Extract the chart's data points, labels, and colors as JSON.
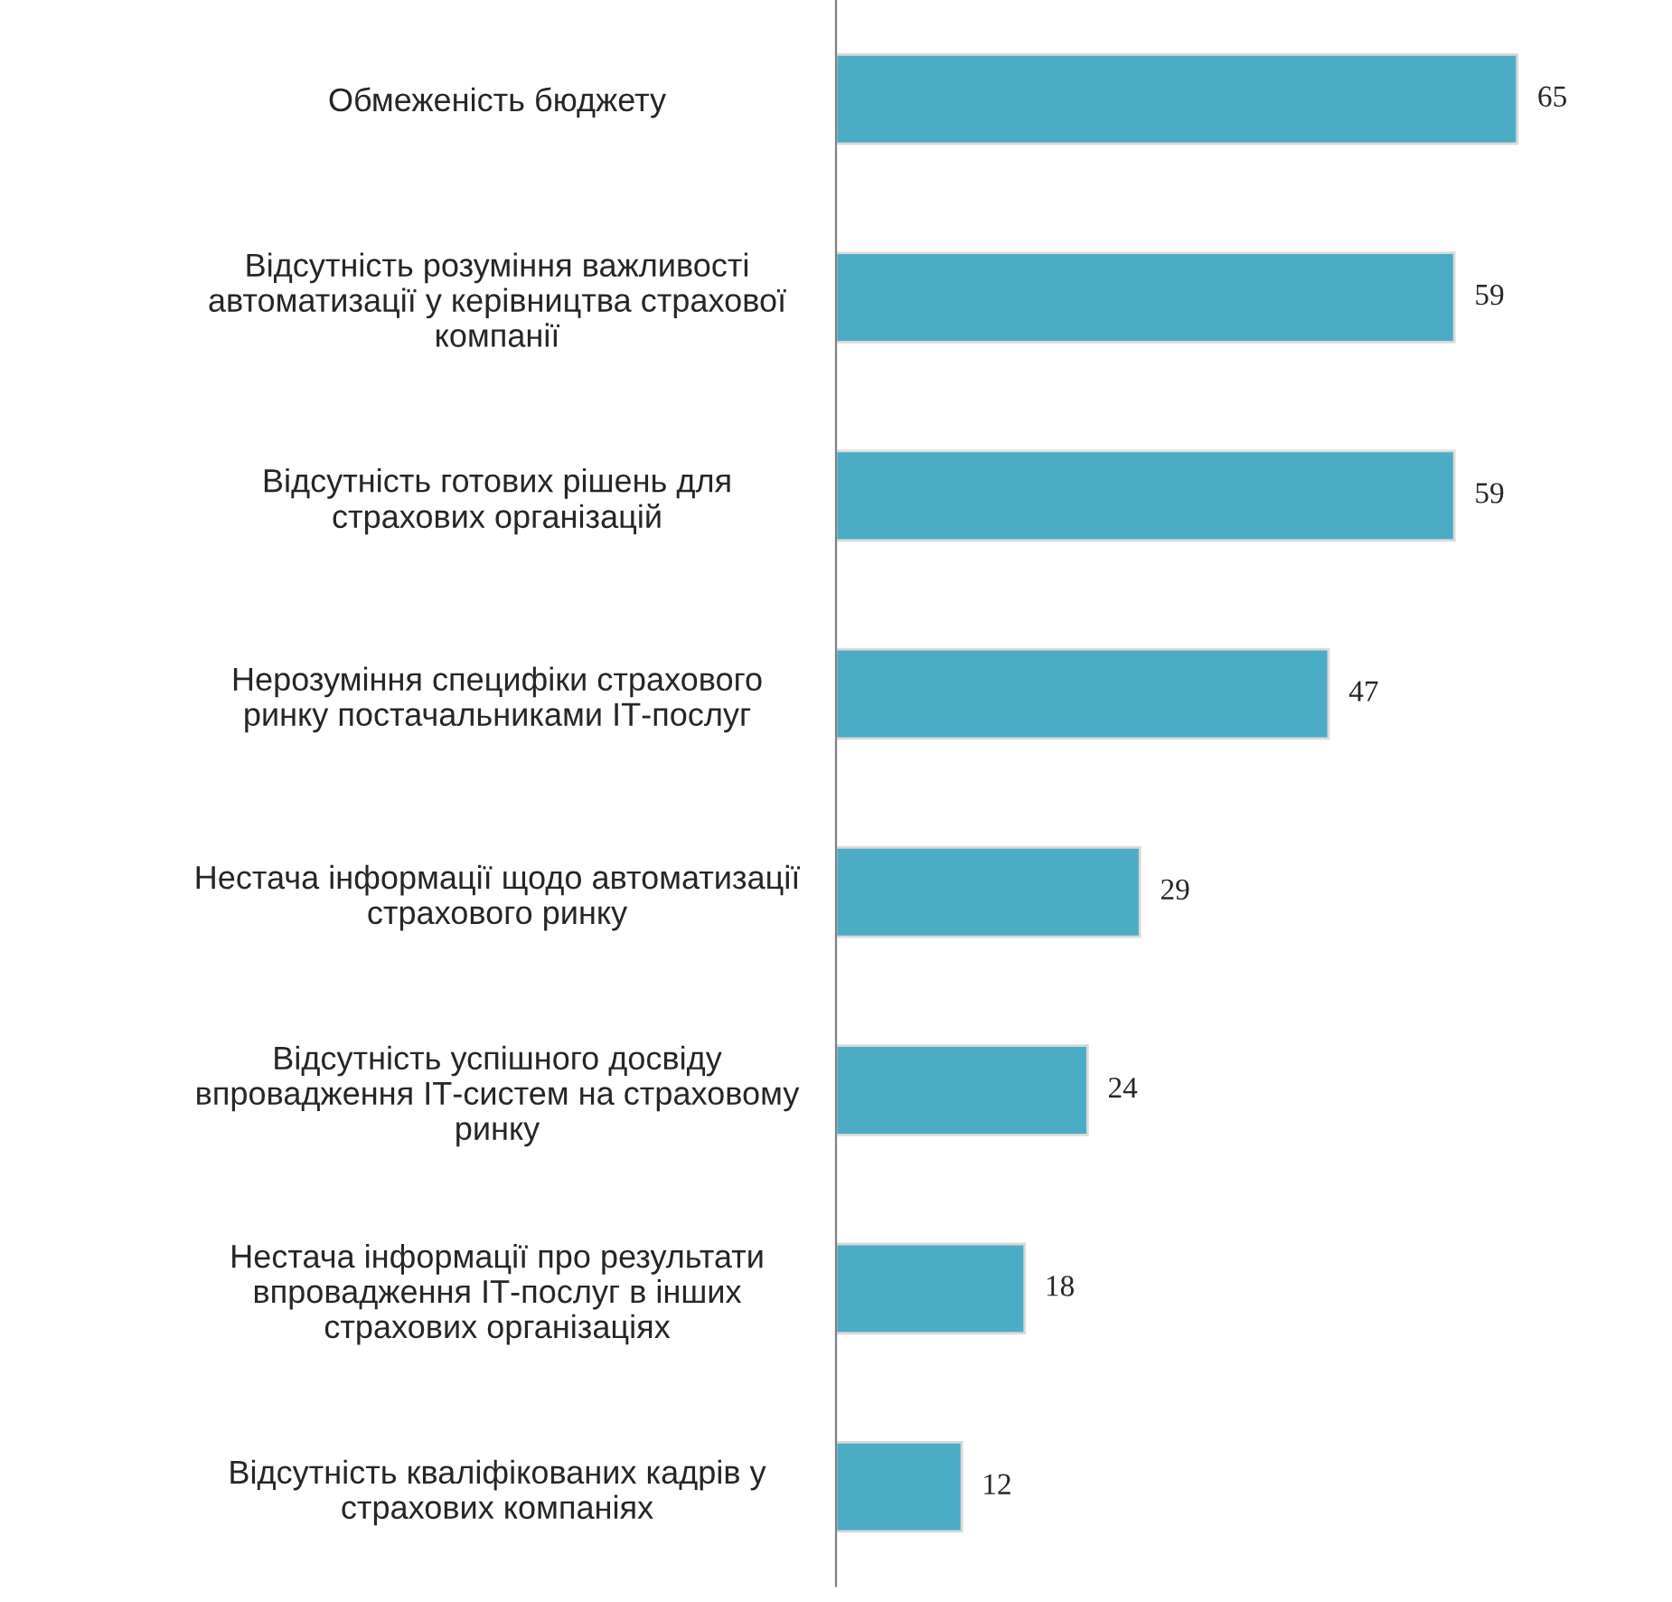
{
  "chart_data": {
    "type": "bar",
    "orientation": "horizontal",
    "data_labels": true,
    "grid": false,
    "legend": false,
    "categories": [
      "Обмеженість бюджету",
      "Відсутність розуміння важливості\nавтоматизації у керівництва страхової\nкомпанії",
      "Відсутність готових рішень для\nстрахових організацій",
      "Нерозуміння специфіки страхового\nринку постачальниками ІТ-послуг",
      "Нестача інформації щодо автоматизації\nстрахового ринку",
      "Відсутність успішного досвіду\nвпровадження ІТ-систем на страховому\nринку",
      "Нестача інформації про результати\nвпровадження ІТ-послуг в інших\nстрахових організаціях",
      "Відсутність кваліфікованих кадрів у\nстрахових компаніях"
    ],
    "values": [
      65,
      59,
      59,
      47,
      29,
      24,
      18,
      12
    ],
    "color": "#4bacc6"
  }
}
